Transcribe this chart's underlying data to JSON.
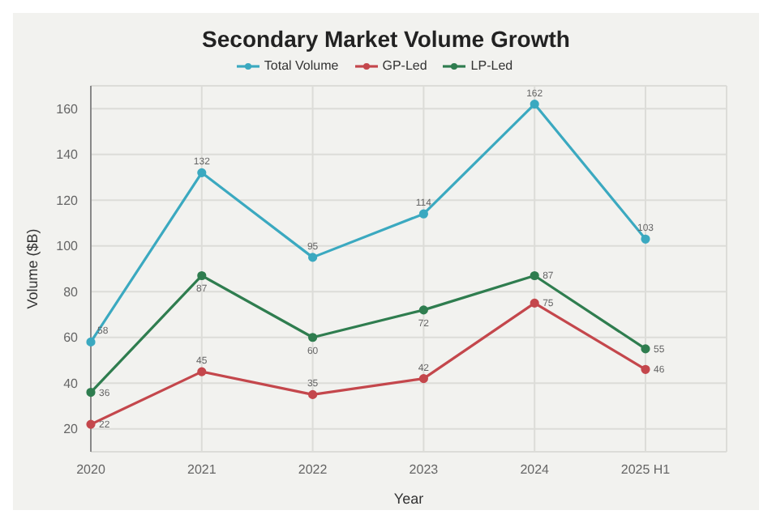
{
  "chart_data": {
    "type": "line",
    "title": "Secondary Market Volume Growth",
    "xlabel": "Year",
    "ylabel": "Volume ($B)",
    "categories": [
      "2020",
      "2021",
      "2022",
      "2023",
      "2024",
      "2025 H1"
    ],
    "series": [
      {
        "name": "Total Volume",
        "color": "#3ba9c0",
        "values": [
          58,
          132,
          95,
          114,
          162,
          103
        ]
      },
      {
        "name": "GP-Led",
        "color": "#c4474c",
        "values": [
          22,
          45,
          35,
          42,
          75,
          46
        ]
      },
      {
        "name": "LP-Led",
        "color": "#2f7d4f",
        "values": [
          36,
          87,
          60,
          72,
          87,
          55
        ]
      }
    ],
    "ylim": [
      10,
      170
    ],
    "yticks": [
      20,
      40,
      60,
      80,
      100,
      120,
      140,
      160
    ],
    "grid": true,
    "legend": "top",
    "marker": "circle",
    "line_style": "solid",
    "data_labels": true
  }
}
